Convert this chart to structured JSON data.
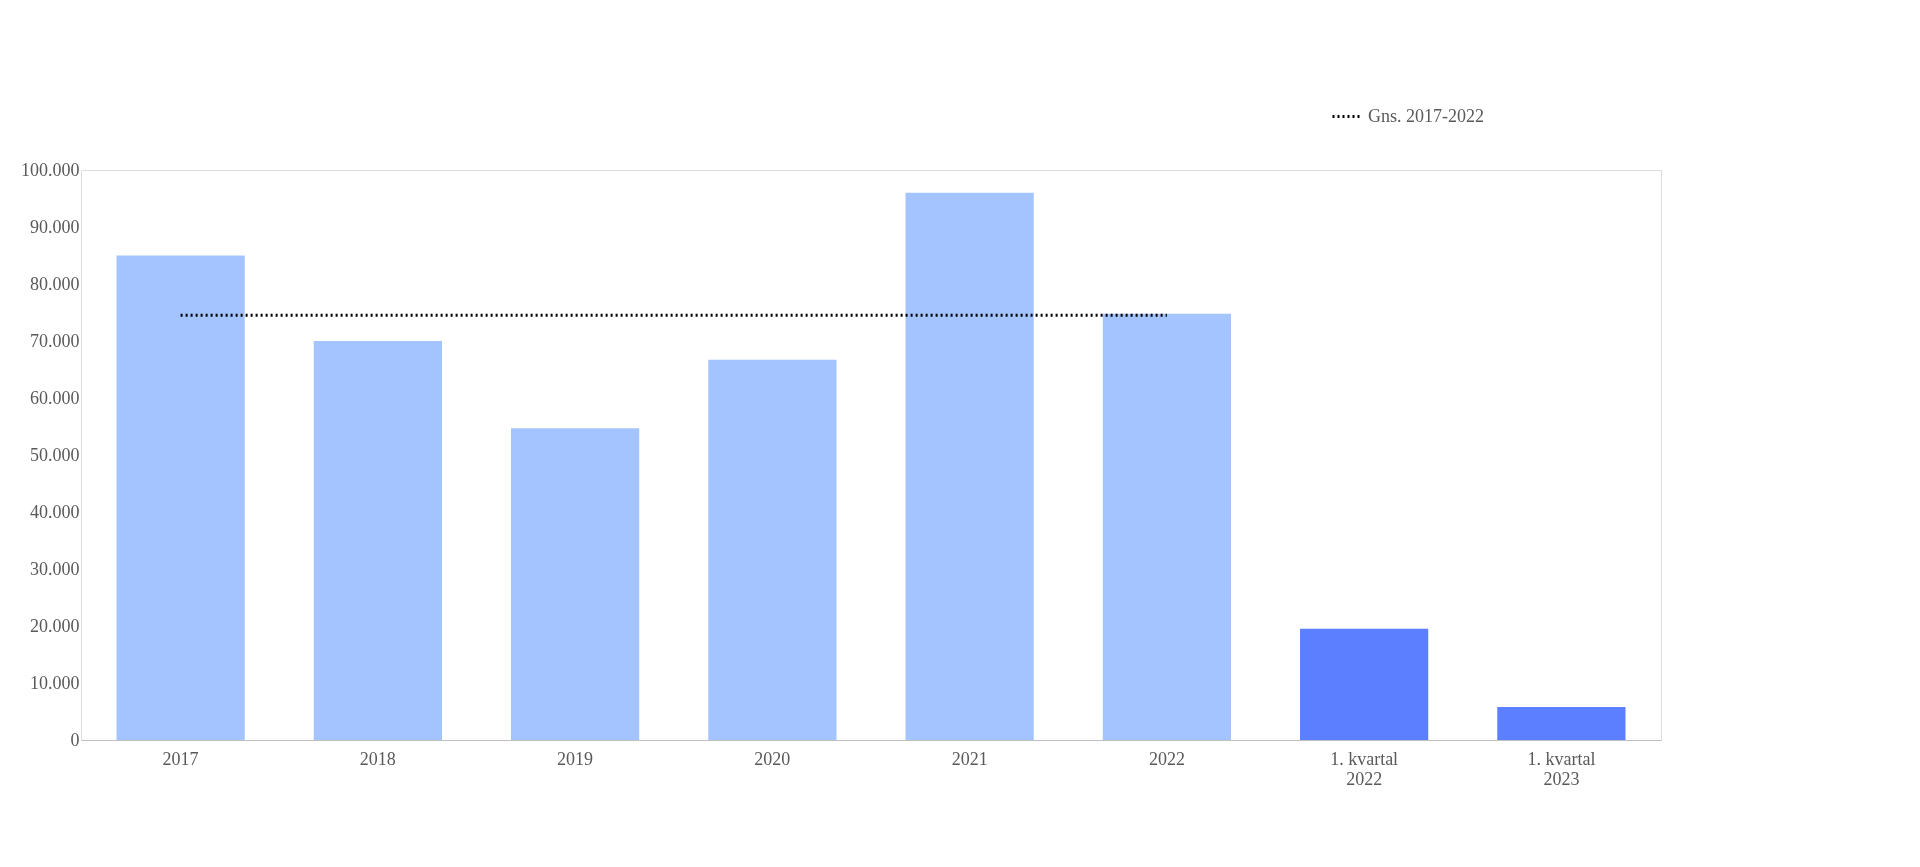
{
  "chart_data": {
    "type": "bar",
    "categories": [
      "2017",
      "2018",
      "2019",
      "2020",
      "2021",
      "2022",
      "1. kvartal 2022",
      "1. kvartal 2023"
    ],
    "series": [
      {
        "colors": [
          "#a3c4ff",
          "#a3c4ff",
          "#a3c4ff",
          "#a3c4ff",
          "#a3c4ff",
          "#a3c4ff",
          "#5b7fff",
          "#5b7fff"
        ],
        "values": [
          85000,
          70000,
          54700,
          66700,
          96000,
          74800,
          19500,
          5800
        ]
      },
      {
        "type": "line",
        "name": "Gns. 2017-2022",
        "color": "#000000",
        "line_style": "dotted",
        "values": [
          74500,
          74500,
          74500,
          74500,
          74500,
          74500,
          null,
          null
        ]
      }
    ],
    "ylim": [
      0,
      100000
    ],
    "yticks": [
      {
        "value": 0,
        "label": "0"
      },
      {
        "value": 10000,
        "label": "10.000"
      },
      {
        "value": 20000,
        "label": "20.000"
      },
      {
        "value": 30000,
        "label": "30.000"
      },
      {
        "value": 40000,
        "label": "40.000"
      },
      {
        "value": 50000,
        "label": "50.000"
      },
      {
        "value": 60000,
        "label": "60.000"
      },
      {
        "value": 70000,
        "label": "70.000"
      },
      {
        "value": 80000,
        "label": "80.000"
      },
      {
        "value": 90000,
        "label": "90.000"
      },
      {
        "value": 100000,
        "label": "100.000"
      }
    ],
    "grid": false,
    "legend": "top right"
  }
}
